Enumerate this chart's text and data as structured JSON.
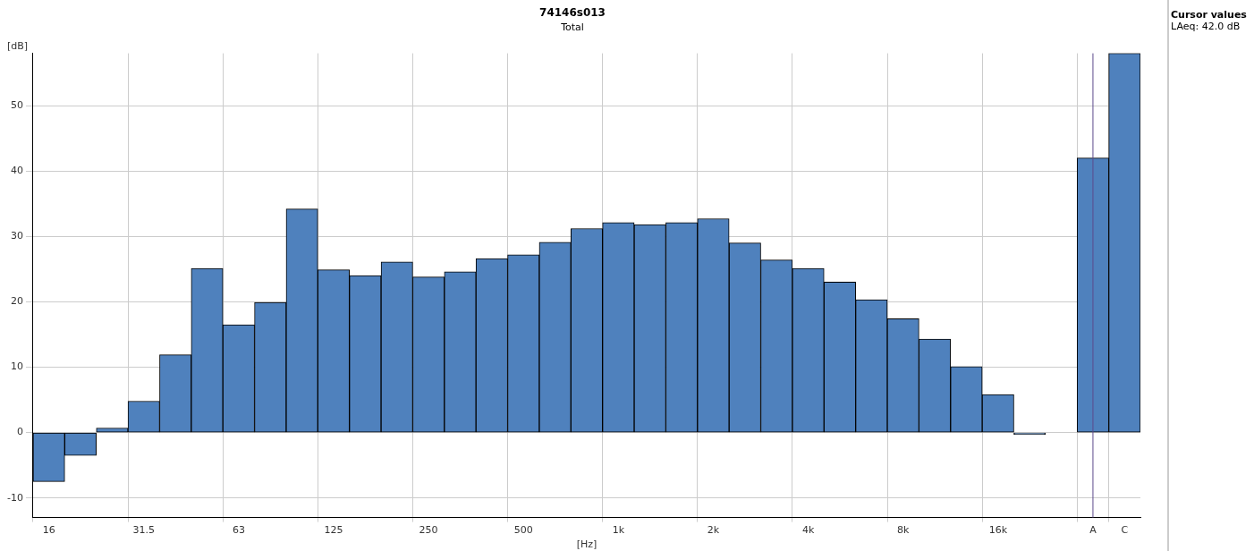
{
  "chart_data": {
    "type": "bar",
    "title": "74146s013",
    "subtitle": "Total",
    "xlabel": "[Hz]",
    "ylabel": "[dB]",
    "categories": [
      "16",
      null,
      null,
      "31.5",
      null,
      null,
      "63",
      null,
      null,
      "125",
      null,
      null,
      "250",
      null,
      null,
      "500",
      null,
      null,
      "1k",
      null,
      null,
      "2k",
      null,
      null,
      "4k",
      null,
      null,
      "8k",
      null,
      null,
      "16k",
      null,
      null,
      "A",
      "C"
    ],
    "values": [
      -7.5,
      -3.5,
      0.7,
      4.8,
      11.9,
      25.1,
      16.5,
      19.9,
      34.2,
      24.9,
      24.0,
      26.1,
      23.8,
      24.6,
      26.6,
      27.2,
      29.1,
      31.2,
      32.1,
      31.8,
      32.1,
      32.7,
      29.0,
      26.4,
      25.1,
      23.0,
      20.3,
      17.4,
      14.3,
      10.1,
      5.8,
      -0.3,
      null,
      42.0,
      58.0
    ],
    "color": "#4f81bd",
    "ylim": [
      -13,
      58
    ],
    "yticks": [
      -10,
      0,
      10,
      20,
      30,
      40,
      50
    ],
    "grid": true,
    "legend": false,
    "ref_lines": [
      {
        "axis": "x",
        "value": "A",
        "color": "#5b4a8b"
      }
    ],
    "annotations": [
      "Cursor values",
      "LAeq: 42.0 dB"
    ]
  }
}
